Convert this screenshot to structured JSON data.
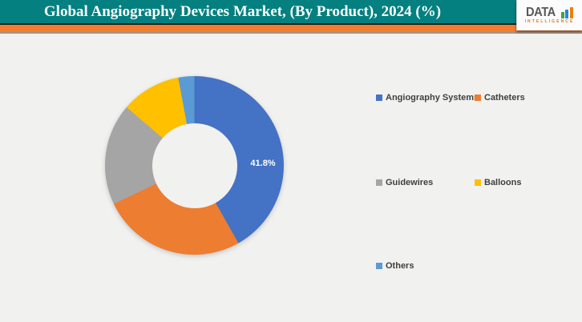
{
  "header": {
    "title": "Global Angiography Devices Market, (By Product), 2024 (%)"
  },
  "logo": {
    "text": "DATA",
    "subtext": "INTELLIGENCE",
    "bar_colors": [
      "#43A047",
      "#1E88E5",
      "#F57C00"
    ]
  },
  "theme": {
    "page_bg": "#F1F1F0",
    "header_teal": "#03807F",
    "stripe_orange": "#F07E2E",
    "divider_dark": "#1C1C1C"
  },
  "chart_data": {
    "type": "pie",
    "subtype": "donut",
    "title": "Global Angiography Devices Market, (By Product), 2024 (%)",
    "labels": [
      "Angiography Systems",
      "Catheters",
      "Guidewires",
      "Balloons",
      "Others"
    ],
    "values": [
      41.8,
      26.1,
      18.4,
      10.8,
      2.9
    ],
    "colors": [
      "#4472C4",
      "#ED7D31",
      "#A5A5A5",
      "#FFC000",
      "#5B9BD5"
    ],
    "data_labels_visible": [
      "41.8%"
    ],
    "shown_label": {
      "series": "Angiography Systems",
      "text": "41.8%"
    },
    "donut_hole_ratio": 0.475,
    "start_angle_deg": 0,
    "direction": "clockwise",
    "legend_position": "right"
  }
}
